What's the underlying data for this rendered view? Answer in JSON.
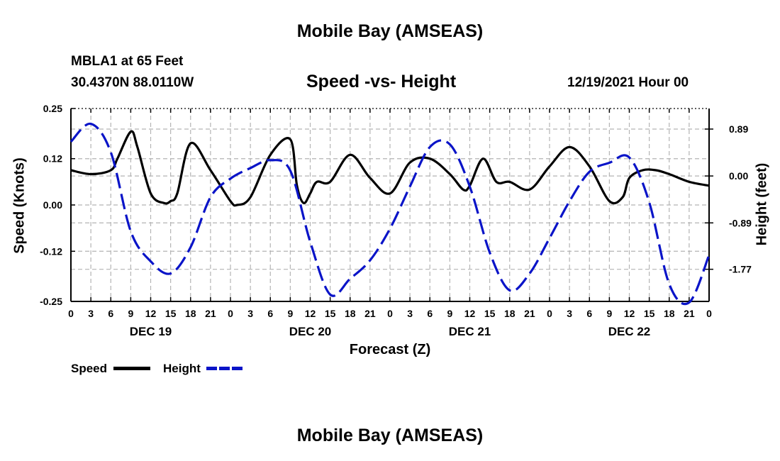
{
  "header": {
    "title": "Mobile Bay (AMSEAS)",
    "station": "MBLA1 at 65 Feet",
    "coords": "30.4370N  88.0110W",
    "subtitle": "Speed -vs- Height",
    "datetime": "12/19/2021 Hour 00"
  },
  "footer": {
    "title": "Mobile Bay (AMSEAS)"
  },
  "legend": {
    "speed_label": "Speed",
    "height_label": "Height"
  },
  "colors": {
    "speed": "#000000",
    "height": "#0a14c8",
    "grid": "#b4b4b4"
  },
  "chart_data": {
    "type": "line",
    "title": "Speed -vs- Height",
    "xlabel": "Forecast (Z)",
    "ylabel": "Speed (Knots)",
    "y2label": "Height (feet)",
    "xlim": [
      0,
      96
    ],
    "ylim": [
      -0.25,
      0.25
    ],
    "y2lim": [
      -2.38,
      1.28
    ],
    "x_tick_hours": [
      0,
      3,
      6,
      9,
      12,
      15,
      18,
      21,
      24,
      27,
      30,
      33,
      36,
      39,
      42,
      45,
      48,
      51,
      54,
      57,
      60,
      63,
      66,
      69,
      72,
      75,
      78,
      81,
      84,
      87,
      90,
      93,
      96
    ],
    "x_tick_labels": [
      "0",
      "3",
      "6",
      "9",
      "12",
      "15",
      "18",
      "21",
      "0",
      "3",
      "6",
      "9",
      "12",
      "15",
      "18",
      "21",
      "0",
      "3",
      "6",
      "9",
      "12",
      "15",
      "18",
      "21",
      "0",
      "3",
      "6",
      "9",
      "12",
      "15",
      "18",
      "21",
      "0"
    ],
    "day_labels": [
      {
        "label": "DEC 19",
        "hour": 12
      },
      {
        "label": "DEC 20",
        "hour": 36
      },
      {
        "label": "DEC 21",
        "hour": 60
      },
      {
        "label": "DEC 22",
        "hour": 84
      }
    ],
    "y_ticks": [
      0.25,
      0.12,
      0.0,
      -0.12,
      -0.25
    ],
    "y_tick_labels": [
      "0.25",
      "0.12",
      "0.00",
      "-0.12",
      "-0.25"
    ],
    "y2_ticks": [
      0.89,
      0.0,
      -0.89,
      -1.77
    ],
    "y2_tick_labels": [
      "0.89",
      "0.00",
      "-0.89",
      "-1.77"
    ],
    "series": [
      {
        "name": "Speed",
        "axis": "left",
        "style": "solid",
        "x": [
          0,
          3,
          6,
          7,
          9,
          10,
          12,
          14,
          15,
          16,
          18,
          21,
          24,
          25,
          27,
          30,
          33,
          34,
          35,
          36,
          37,
          39,
          42,
          45,
          48,
          51,
          54,
          57,
          59,
          60,
          62,
          64,
          66,
          69,
          72,
          75,
          78,
          81,
          83,
          84,
          86,
          88,
          90,
          93,
          96
        ],
        "values": [
          0.09,
          0.08,
          0.09,
          0.12,
          0.19,
          0.15,
          0.03,
          0.005,
          0.01,
          0.03,
          0.16,
          0.09,
          0.01,
          0.0,
          0.02,
          0.13,
          0.17,
          0.05,
          0.005,
          0.03,
          0.06,
          0.06,
          0.13,
          0.07,
          0.03,
          0.11,
          0.12,
          0.08,
          0.04,
          0.05,
          0.12,
          0.06,
          0.06,
          0.04,
          0.1,
          0.15,
          0.1,
          0.01,
          0.02,
          0.07,
          0.09,
          0.09,
          0.08,
          0.06,
          0.05
        ]
      },
      {
        "name": "Height",
        "axis": "right",
        "style": "dashed",
        "x": [
          0,
          3,
          6,
          9,
          12,
          15,
          18,
          21,
          24,
          27,
          30,
          33,
          36,
          39,
          42,
          45,
          48,
          51,
          54,
          57,
          60,
          63,
          66,
          69,
          72,
          75,
          78,
          81,
          84,
          87,
          90,
          93,
          96
        ],
        "values": [
          0.65,
          0.99,
          0.45,
          -1.05,
          -1.62,
          -1.85,
          -1.35,
          -0.4,
          -0.05,
          0.15,
          0.3,
          0.1,
          -1.25,
          -2.25,
          -1.95,
          -1.6,
          -1.0,
          -0.2,
          0.55,
          0.6,
          -0.2,
          -1.45,
          -2.17,
          -1.85,
          -1.18,
          -0.48,
          0.08,
          0.25,
          0.35,
          -0.5,
          -2.05,
          -2.4,
          -1.5
        ]
      }
    ]
  }
}
